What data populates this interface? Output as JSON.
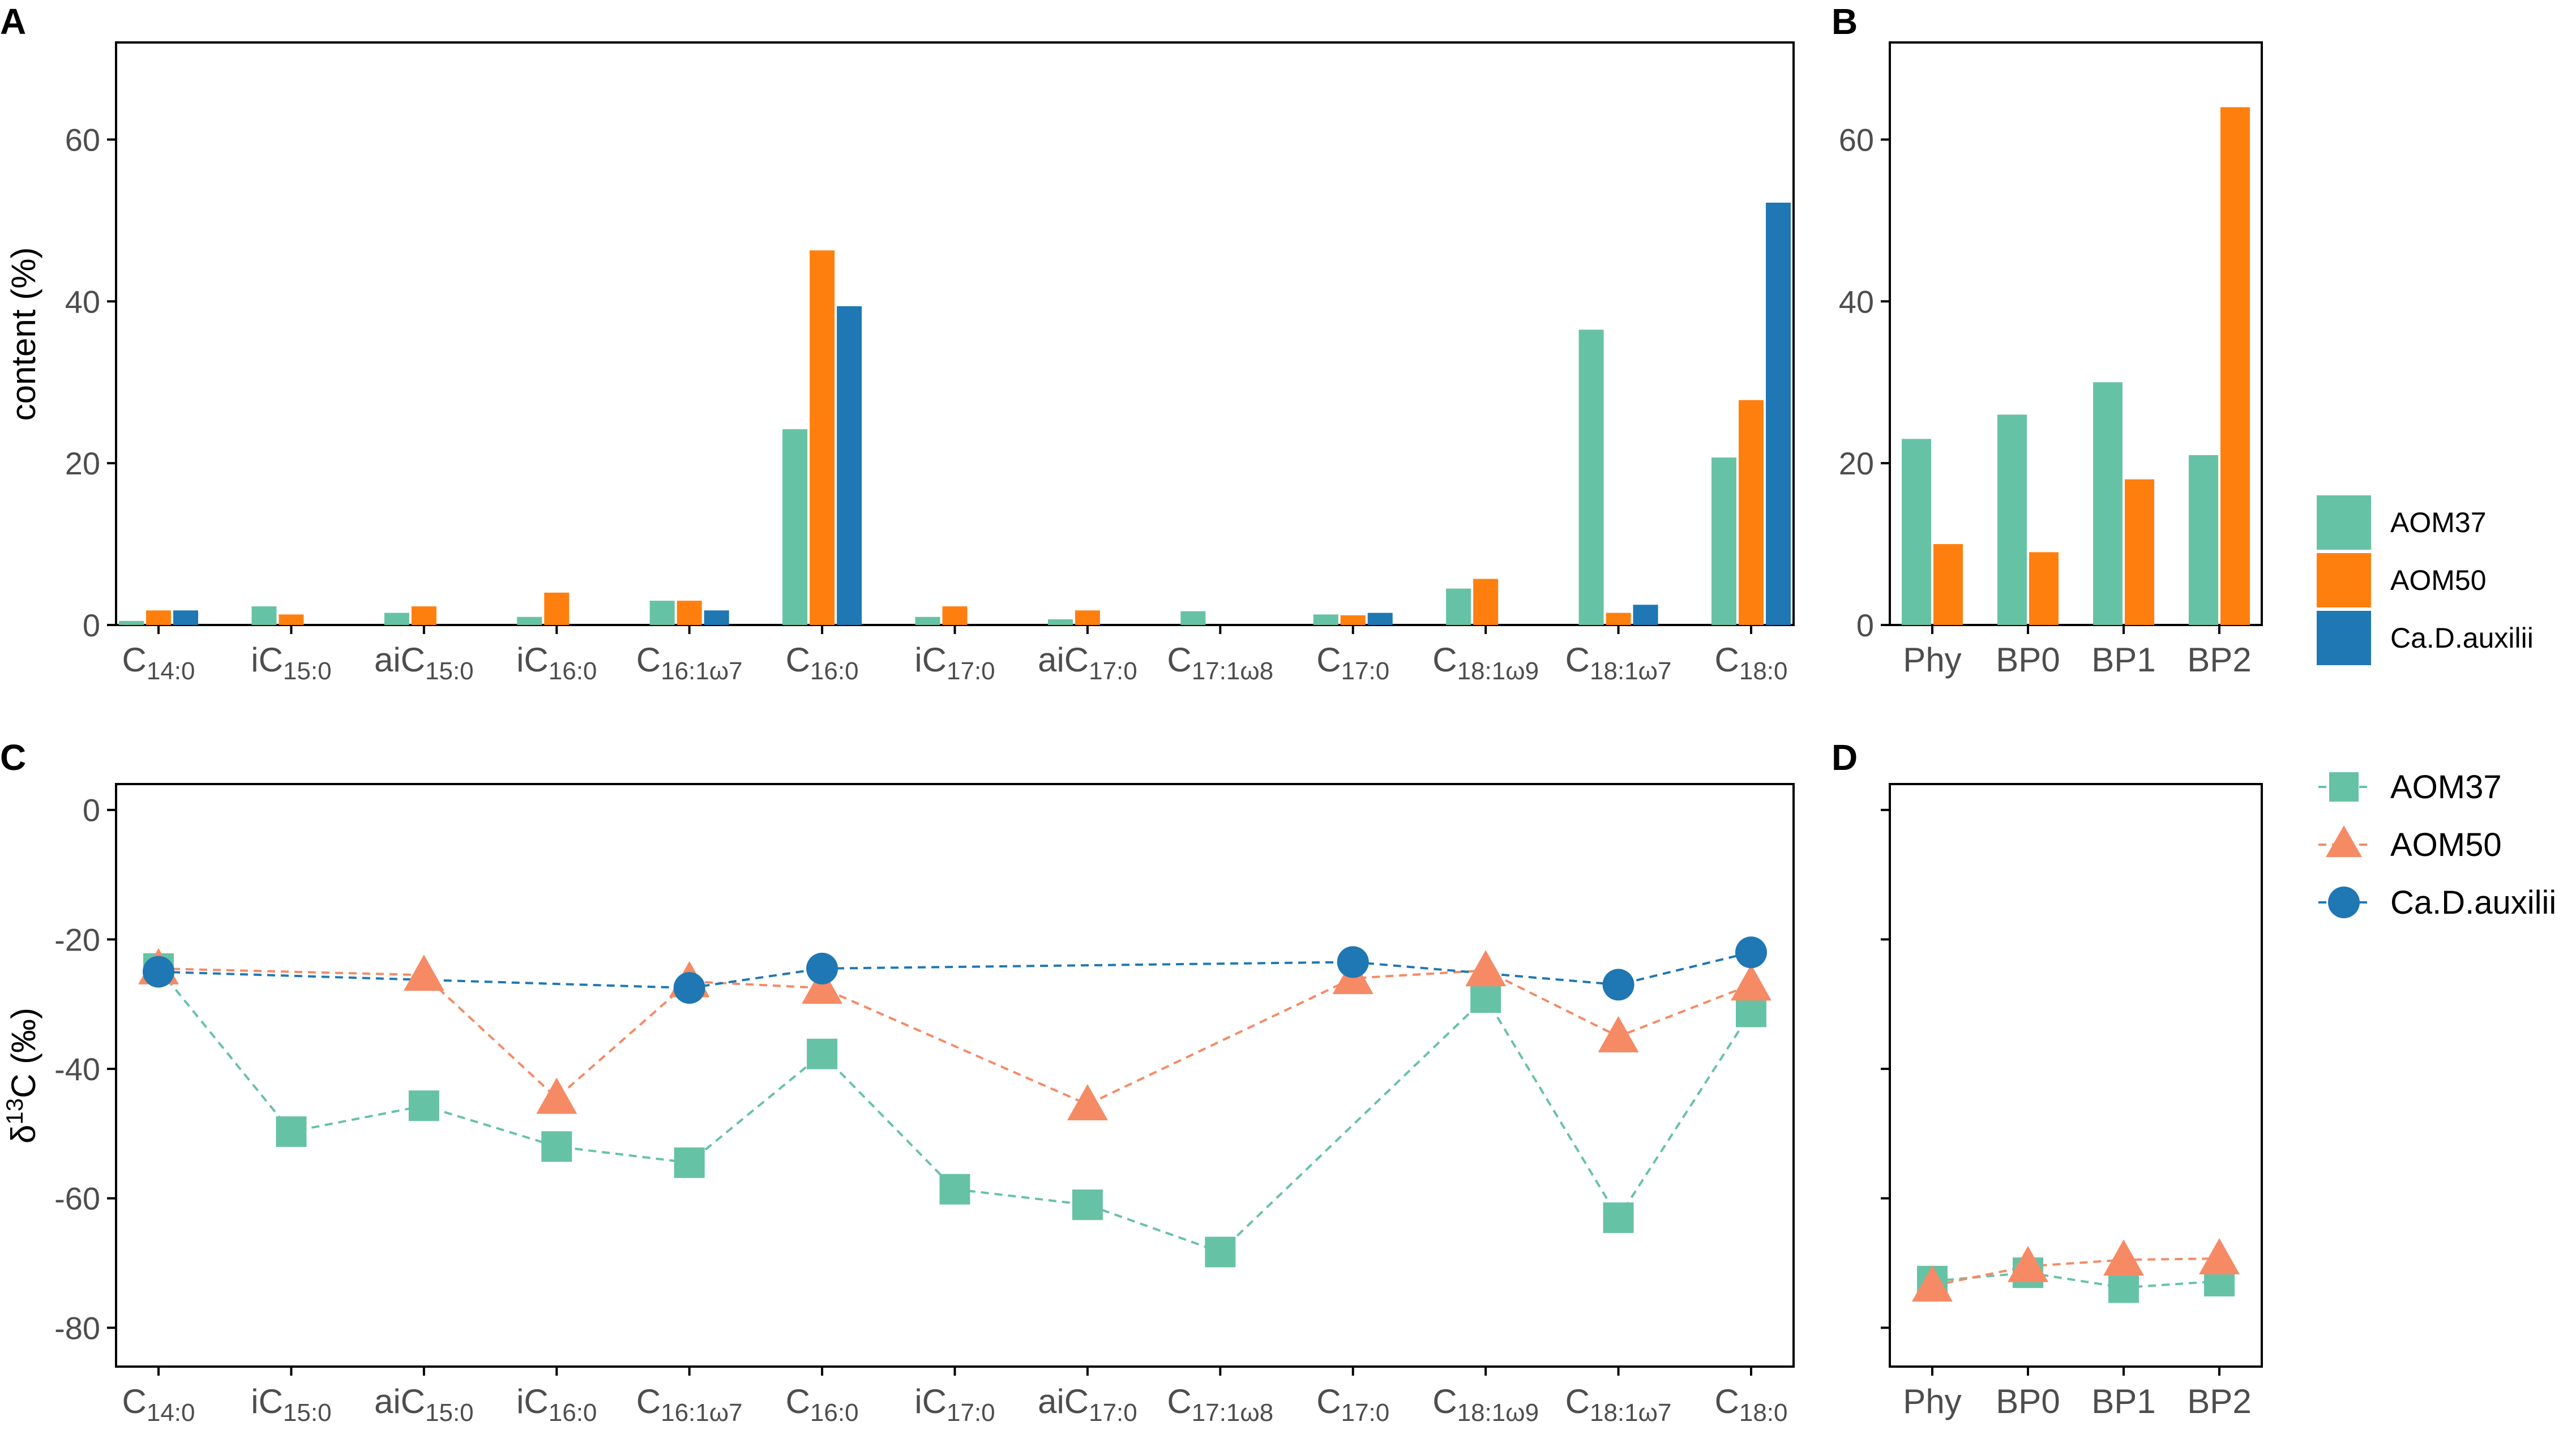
{
  "figure": {
    "panel_letters": [
      "A",
      "B",
      "C",
      "D"
    ]
  },
  "colors": {
    "AOM37": "#66c2a5",
    "AOM50_bar": "#ff7f0e",
    "AOM50_point": "#f58a65",
    "CaD": "#1f77b4",
    "axis": "#000000",
    "tick_text": "#4d4d4d"
  },
  "chart_data": [
    {
      "panel": "A",
      "type": "bar",
      "ylabel": "content (%)",
      "xlabel": "",
      "ylim": [
        0,
        72
      ],
      "yticks": [
        0,
        20,
        40,
        60
      ],
      "categories": [
        {
          "base": "C",
          "sub": "14:0"
        },
        {
          "base": "iC",
          "sub": "15:0"
        },
        {
          "base": "aiC",
          "sub": "15:0"
        },
        {
          "base": "iC",
          "sub": "16:0"
        },
        {
          "base": "C",
          "sub": "16:1ω7"
        },
        {
          "base": "C",
          "sub": "16:0"
        },
        {
          "base": "iC",
          "sub": "17:0"
        },
        {
          "base": "aiC",
          "sub": "17:0"
        },
        {
          "base": "C",
          "sub": "17:1ω8"
        },
        {
          "base": "C",
          "sub": "17:0"
        },
        {
          "base": "C",
          "sub": "18:1ω9"
        },
        {
          "base": "C",
          "sub": "18:1ω7"
        },
        {
          "base": "C",
          "sub": "18:0"
        }
      ],
      "series": [
        {
          "name": "AOM37",
          "values": [
            0.5,
            2.3,
            1.5,
            1.0,
            3.0,
            24.2,
            1.0,
            0.7,
            1.7,
            1.3,
            4.5,
            36.5,
            20.7
          ]
        },
        {
          "name": "AOM50",
          "values": [
            1.8,
            1.3,
            2.3,
            4.0,
            3.0,
            46.3,
            2.3,
            1.8,
            0,
            1.2,
            5.7,
            1.5,
            27.8
          ]
        },
        {
          "name": "Ca.D.auxilii",
          "values": [
            1.8,
            0,
            0,
            0,
            1.8,
            39.4,
            0,
            0,
            0,
            1.5,
            0,
            2.5,
            52.2
          ]
        }
      ]
    },
    {
      "panel": "B",
      "type": "bar",
      "ylim": [
        0,
        72
      ],
      "yticks": [
        0,
        20,
        40,
        60
      ],
      "categories": [
        "Phy",
        "BP0",
        "BP1",
        "BP2"
      ],
      "series": [
        {
          "name": "AOM37",
          "values": [
            23,
            26,
            30,
            21
          ]
        },
        {
          "name": "AOM50",
          "values": [
            10,
            9,
            18,
            64
          ]
        }
      ]
    },
    {
      "panel": "C",
      "type": "line",
      "ylabel_base": "δ",
      "ylabel_sup": "13",
      "ylabel_rest": "C (‰)",
      "ylim": [
        -86,
        4
      ],
      "yticks": [
        0,
        -20,
        -40,
        -60,
        -80
      ],
      "categories": [
        {
          "base": "C",
          "sub": "14:0"
        },
        {
          "base": "iC",
          "sub": "15:0"
        },
        {
          "base": "aiC",
          "sub": "15:0"
        },
        {
          "base": "iC",
          "sub": "16:0"
        },
        {
          "base": "C",
          "sub": "16:1ω7"
        },
        {
          "base": "C",
          "sub": "16:0"
        },
        {
          "base": "iC",
          "sub": "17:0"
        },
        {
          "base": "aiC",
          "sub": "17:0"
        },
        {
          "base": "C",
          "sub": "17:1ω8"
        },
        {
          "base": "C",
          "sub": "17:0"
        },
        {
          "base": "C",
          "sub": "18:1ω9"
        },
        {
          "base": "C",
          "sub": "18:1ω7"
        },
        {
          "base": "C",
          "sub": "18:0"
        }
      ],
      "series": [
        {
          "name": "AOM37",
          "marker": "square",
          "values": [
            -24.5,
            -49.7,
            -45.7,
            -52.0,
            -54.5,
            -37.7,
            -58.6,
            -61.0,
            -68.3,
            null,
            -29.0,
            -63.0,
            -31.2
          ]
        },
        {
          "name": "AOM50",
          "marker": "triangle",
          "values": [
            -24.5,
            null,
            -25.5,
            -44.5,
            -26.5,
            -27.5,
            null,
            -45.5,
            null,
            -26.0,
            -24.8,
            -35.0,
            -27.0
          ]
        },
        {
          "name": "Ca.D.auxilii",
          "marker": "circle",
          "values": [
            -25.0,
            null,
            null,
            null,
            -27.5,
            -24.5,
            null,
            null,
            null,
            -23.5,
            null,
            -27.0,
            -22.0
          ]
        }
      ]
    },
    {
      "panel": "D",
      "type": "line",
      "ylim": [
        -86,
        4
      ],
      "yticks": [
        0,
        -20,
        -40,
        -60,
        -80
      ],
      "categories": [
        "Phy",
        "BP0",
        "BP1",
        "BP2"
      ],
      "series": [
        {
          "name": "AOM37",
          "marker": "square",
          "values": [
            -72.8,
            -71.5,
            -73.8,
            -72.8
          ]
        },
        {
          "name": "AOM50",
          "marker": "triangle",
          "values": [
            -73.5,
            -70.5,
            -69.5,
            -69.3
          ]
        }
      ]
    }
  ],
  "legend_bar": {
    "entries": [
      "AOM37",
      "AOM50",
      "Ca.D.auxilii"
    ]
  },
  "legend_line": {
    "entries": [
      "AOM37",
      "AOM50",
      "Ca.D.auxilii"
    ]
  }
}
